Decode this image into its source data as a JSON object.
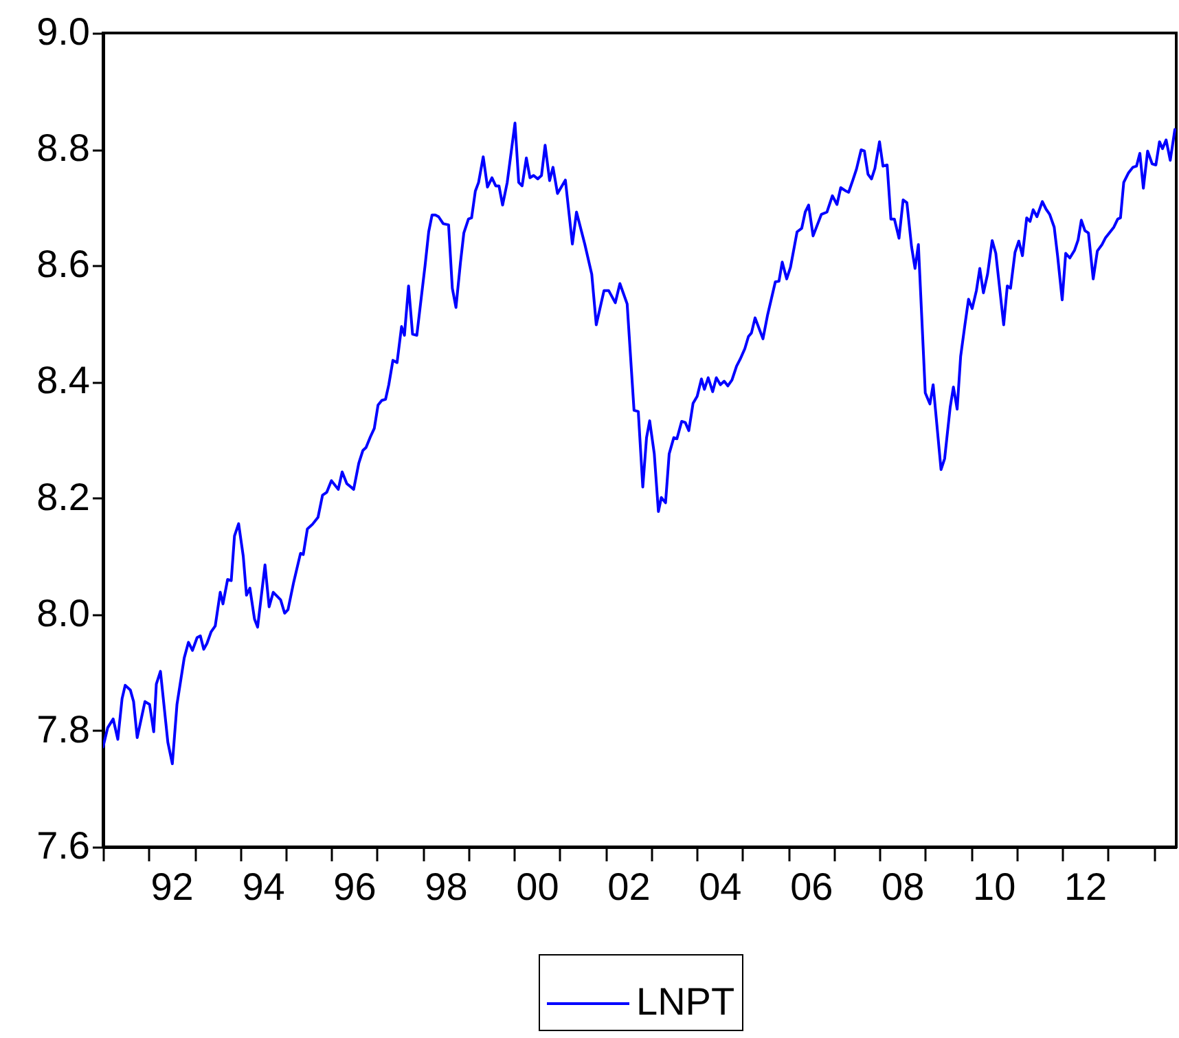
{
  "chart_data": {
    "type": "line",
    "legend": "bottom",
    "xlim": [
      "1991-01-01",
      "2014-07-01"
    ],
    "xticks": [
      {
        "value": "1991",
        "label": null
      },
      {
        "value": "1992",
        "label": null
      },
      {
        "value": "1993",
        "label": null
      },
      {
        "value": "1994",
        "label": null
      },
      {
        "value": "1995",
        "label": null
      },
      {
        "value": "1996",
        "label": null
      },
      {
        "value": "1997",
        "label": null
      },
      {
        "value": "1998",
        "label": null
      },
      {
        "value": "1999",
        "label": null
      },
      {
        "value": "2000",
        "label": null
      },
      {
        "value": "2001",
        "label": null
      },
      {
        "value": "2002",
        "label": null
      },
      {
        "value": "2003",
        "label": null
      },
      {
        "value": "2004",
        "label": null
      },
      {
        "value": "2005",
        "label": null
      },
      {
        "value": "2006",
        "label": null
      },
      {
        "value": "2007",
        "label": null
      },
      {
        "value": "2008",
        "label": null
      },
      {
        "value": "2009",
        "label": null
      },
      {
        "value": "2010",
        "label": null
      },
      {
        "value": "2011",
        "label": null
      },
      {
        "value": "2012",
        "label": null
      },
      {
        "value": "2013",
        "label": null
      },
      {
        "value": "2014",
        "label": null
      },
      {
        "value": "1992-07",
        "label": "92"
      },
      {
        "value": "1994-07",
        "label": "94"
      },
      {
        "value": "1996-07",
        "label": "96"
      },
      {
        "value": "1998-07",
        "label": "98"
      },
      {
        "value": "2000-07",
        "label": "00"
      },
      {
        "value": "2002-07",
        "label": "02"
      },
      {
        "value": "2004-07",
        "label": "04"
      },
      {
        "value": "2006-07",
        "label": "06"
      },
      {
        "value": "2008-07",
        "label": "08"
      },
      {
        "value": "2010-07",
        "label": "10"
      },
      {
        "value": "2012-07",
        "label": "12"
      }
    ],
    "ylim": [
      7.6,
      9.0
    ],
    "yticks": [
      {
        "value": 7.6,
        "label": "7.6"
      },
      {
        "value": 7.8,
        "label": "7.8"
      },
      {
        "value": 8.0,
        "label": "8.0"
      },
      {
        "value": 8.2,
        "label": "8.2"
      },
      {
        "value": 8.4,
        "label": "8.4"
      },
      {
        "value": 8.6,
        "label": "8.6"
      },
      {
        "value": 8.8,
        "label": "8.8"
      },
      {
        "value": 9.0,
        "label": "9.0"
      }
    ],
    "series": [
      {
        "name": "LNPT",
        "color": "#0000ff",
        "x": [
          "1991-01-01",
          "1991-02-07",
          "1991-03-23",
          "1991-04-29",
          "1991-06-02",
          "1991-06-27",
          "1991-08-07",
          "1991-09-02",
          "1991-10-01",
          "1991-12-02",
          "1992-01-08",
          "1992-02-10",
          "1992-03-02",
          "1992-04-04",
          "1992-06-02",
          "1992-07-08",
          "1992-08-14",
          "1992-10-11",
          "1992-11-14",
          "1992-12-16",
          "1993-01-22",
          "1993-02-17",
          "1993-03-16",
          "1993-04-11",
          "1993-05-14",
          "1993-06-16",
          "1993-07-26",
          "1993-08-17",
          "1993-09-23",
          "1993-10-22",
          "1993-11-17",
          "1993-12-20",
          "1994-01-26",
          "1994-02-21",
          "1994-03-20",
          "1994-04-26",
          "1994-05-21",
          "1994-07-19",
          "1994-08-21",
          "1994-09-23",
          "1994-11-21",
          "1994-12-23",
          "1995-01-19",
          "1995-03-05",
          "1995-04-29",
          "1995-05-21",
          "1995-06-23",
          "1995-08-03",
          "1995-09-16",
          "1995-10-22",
          "1995-11-25",
          "1996-01-01",
          "1996-02-25",
          "1996-03-27",
          "1996-05-03",
          "1996-06-27",
          "1996-08-07",
          "1996-09-09",
          "1996-10-04",
          "1996-11-07",
          "1996-12-09",
          "1997-01-08",
          "1997-02-07",
          "1997-03-09",
          "1997-04-04",
          "1997-05-07",
          "1997-06-09",
          "1997-07-15",
          "1997-08-07",
          "1997-09-09",
          "1997-10-11",
          "1997-11-14",
          "1998-01-19",
          "1998-02-17",
          "1998-03-16",
          "1998-04-11",
          "1998-05-07",
          "1998-06-13",
          "1998-07-26",
          "1998-08-25",
          "1998-09-23",
          "1998-10-29",
          "1998-11-25",
          "1999-01-01",
          "1999-01-26",
          "1999-02-25",
          "1999-03-23",
          "1999-04-29",
          "1999-06-02",
          "1999-07-08",
          "1999-08-07",
          "1999-09-02",
          "1999-10-01",
          "1999-11-07",
          "2000-01-08",
          "2000-02-07",
          "2000-03-05",
          "2000-04-08",
          "2000-05-07",
          "2000-06-05",
          "2000-07-08",
          "2000-08-07",
          "2000-09-05",
          "2000-10-11",
          "2000-11-07",
          "2000-12-13",
          "2001-02-14",
          "2001-04-11",
          "2001-05-14",
          "2001-07-19",
          "2001-09-13",
          "2001-10-19",
          "2001-12-20",
          "2002-01-26",
          "2002-03-20",
          "2002-04-26",
          "2002-06-23",
          "2002-08-17",
          "2002-09-20",
          "2002-10-26",
          "2002-11-25",
          "2002-12-20",
          "2003-01-26",
          "2003-02-28",
          "2003-03-23",
          "2003-04-26",
          "2003-05-25",
          "2003-07-01",
          "2003-07-26",
          "2003-09-02",
          "2003-10-01",
          "2003-10-29",
          "2003-12-02",
          "2004-01-04",
          "2004-02-07",
          "2004-03-02",
          "2004-04-01",
          "2004-05-07",
          "2004-06-05",
          "2004-07-08",
          "2004-08-07",
          "2004-09-05",
          "2004-10-08",
          "2004-11-14",
          "2004-12-13",
          "2005-01-19",
          "2005-02-17",
          "2005-03-13",
          "2005-04-11",
          "2005-06-13",
          "2005-07-19",
          "2005-09-20",
          "2005-10-19",
          "2005-11-14",
          "2005-12-20",
          "2006-01-19",
          "2006-03-13",
          "2006-04-19",
          "2006-05-17",
          "2006-06-13",
          "2006-07-19",
          "2006-09-23",
          "2006-11-07",
          "2006-12-20",
          "2007-01-26",
          "2007-02-25",
          "2007-04-01",
          "2007-04-29",
          "2007-06-02",
          "2007-07-01",
          "2007-08-07",
          "2007-09-02",
          "2007-10-01",
          "2007-10-29",
          "2007-11-25",
          "2008-01-01",
          "2008-01-29",
          "2008-03-02",
          "2008-04-01",
          "2008-04-29",
          "2008-06-05",
          "2008-07-08",
          "2008-08-07",
          "2008-09-13",
          "2008-10-11",
          "2008-11-07",
          "2009-01-01",
          "2009-02-07",
          "2009-03-05",
          "2009-05-07",
          "2009-06-05",
          "2009-07-19",
          "2009-08-14",
          "2009-09-13",
          "2009-10-11",
          "2009-11-14",
          "2009-12-13",
          "2010-01-11",
          "2010-02-14",
          "2010-03-13",
          "2010-04-11",
          "2010-05-14",
          "2010-06-20",
          "2010-07-19",
          "2010-09-20",
          "2010-10-19",
          "2010-11-14",
          "2010-12-20",
          "2011-01-19",
          "2011-02-17",
          "2011-03-23",
          "2011-04-19",
          "2011-05-14",
          "2011-06-13",
          "2011-07-26",
          "2011-08-25",
          "2011-09-23",
          "2011-10-29",
          "2011-11-25",
          "2012-01-01",
          "2012-01-29",
          "2012-03-02",
          "2012-04-08",
          "2012-05-07",
          "2012-06-02",
          "2012-07-01",
          "2012-07-29",
          "2012-09-05",
          "2012-10-08",
          "2012-11-14",
          "2012-12-13",
          "2013-01-19",
          "2013-02-17",
          "2013-03-20",
          "2013-04-11",
          "2013-05-07",
          "2013-06-13",
          "2013-07-19",
          "2013-08-17",
          "2013-09-13",
          "2013-10-11",
          "2013-11-14",
          "2013-12-20",
          "2014-01-19",
          "2014-02-17",
          "2014-03-13",
          "2014-04-11",
          "2014-05-14",
          "2014-06-20"
        ],
        "values": [
          7.772,
          7.805,
          7.82,
          7.785,
          7.855,
          7.878,
          7.87,
          7.85,
          7.788,
          7.85,
          7.845,
          7.798,
          7.88,
          7.902,
          7.78,
          7.743,
          7.845,
          7.925,
          7.952,
          7.938,
          7.96,
          7.963,
          7.94,
          7.95,
          7.97,
          7.98,
          8.038,
          8.018,
          8.06,
          8.058,
          8.135,
          8.156,
          8.1,
          8.033,
          8.045,
          7.992,
          7.978,
          8.085,
          8.013,
          8.038,
          8.025,
          8.002,
          8.008,
          8.055,
          8.105,
          8.103,
          8.147,
          8.155,
          8.167,
          8.205,
          8.21,
          8.23,
          8.215,
          8.245,
          8.225,
          8.215,
          8.26,
          8.282,
          8.287,
          8.305,
          8.32,
          8.36,
          8.368,
          8.37,
          8.395,
          8.437,
          8.433,
          8.495,
          8.48,
          8.565,
          8.482,
          8.48,
          8.6,
          8.658,
          8.687,
          8.687,
          8.684,
          8.672,
          8.67,
          8.561,
          8.528,
          8.605,
          8.656,
          8.68,
          8.682,
          8.728,
          8.743,
          8.787,
          8.735,
          8.751,
          8.737,
          8.737,
          8.704,
          8.743,
          8.845,
          8.743,
          8.737,
          8.785,
          8.751,
          8.755,
          8.749,
          8.755,
          8.807,
          8.746,
          8.769,
          8.724,
          8.747,
          8.637,
          8.692,
          8.637,
          8.585,
          8.498,
          8.557,
          8.557,
          8.536,
          8.569,
          8.534,
          8.351,
          8.349,
          8.219,
          8.304,
          8.333,
          8.276,
          8.177,
          8.201,
          8.192,
          8.276,
          8.304,
          8.302,
          8.332,
          8.33,
          8.316,
          8.363,
          8.375,
          8.405,
          8.387,
          8.407,
          8.383,
          8.407,
          8.395,
          8.401,
          8.393,
          8.403,
          8.427,
          8.439,
          8.457,
          8.478,
          8.484,
          8.51,
          8.474,
          8.514,
          8.572,
          8.573,
          8.606,
          8.577,
          8.597,
          8.658,
          8.664,
          8.692,
          8.704,
          8.651,
          8.688,
          8.692,
          8.72,
          8.705,
          8.734,
          8.729,
          8.726,
          8.747,
          8.766,
          8.799,
          8.797,
          8.757,
          8.749,
          8.767,
          8.813,
          8.771,
          8.773,
          8.68,
          8.68,
          8.647,
          8.713,
          8.708,
          8.633,
          8.595,
          8.636,
          8.381,
          8.362,
          8.395,
          8.249,
          8.268,
          8.356,
          8.391,
          8.353,
          8.444,
          8.498,
          8.542,
          8.526,
          8.557,
          8.595,
          8.553,
          8.585,
          8.643,
          8.621,
          8.498,
          8.565,
          8.561,
          8.623,
          8.642,
          8.617,
          8.682,
          8.676,
          8.696,
          8.684,
          8.71,
          8.697,
          8.688,
          8.666,
          8.617,
          8.541,
          8.621,
          8.613,
          8.626,
          8.644,
          8.678,
          8.66,
          8.656,
          8.577,
          8.625,
          8.636,
          8.648,
          8.658,
          8.666,
          8.68,
          8.682,
          8.743,
          8.759,
          8.769,
          8.771,
          8.793,
          8.733,
          8.797,
          8.775,
          8.773,
          8.813,
          8.801,
          8.816,
          8.781,
          8.834
        ]
      }
    ]
  }
}
